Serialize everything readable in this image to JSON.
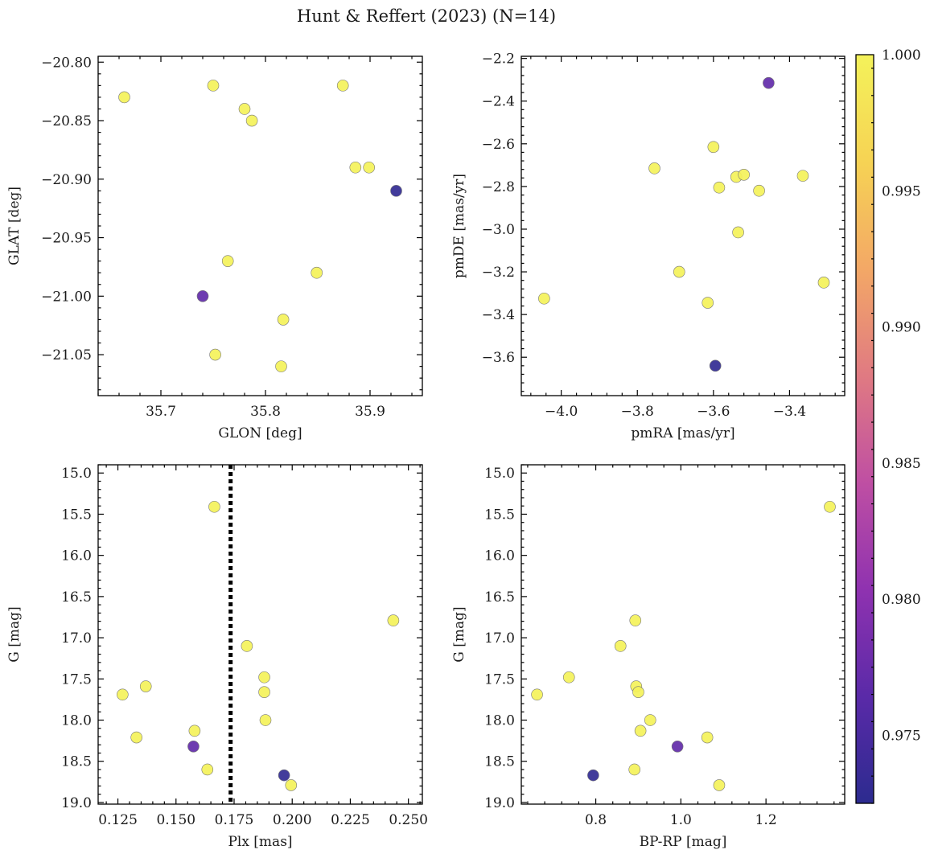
{
  "title": "Hunt & Reffert (2023) (N=14)",
  "colors": {
    "colormap": [
      "#2c2b8f",
      "#5a2aa8",
      "#8f32b0",
      "#bf4fa3",
      "#e07a82",
      "#f3a866",
      "#f6d354",
      "#f4f25a"
    ],
    "frame": "#000000",
    "marker_edge": "#777777"
  },
  "colorbar": {
    "min": 0.9725,
    "max": 1.0,
    "ticks": [
      "0.975",
      "0.980",
      "0.985",
      "0.990",
      "0.995",
      "1.000"
    ]
  },
  "chart_data": [
    {
      "id": "glon-glat",
      "type": "scatter",
      "xlabel": "GLON [deg]",
      "ylabel": "GLAT [deg]",
      "xlim": [
        35.64,
        35.95
      ],
      "ylim": [
        -21.085,
        -20.795
      ],
      "y_inverted": false,
      "xticks": [
        "35.7",
        "35.8",
        "35.9"
      ],
      "yticks": [
        "−20.80",
        "−20.85",
        "−20.90",
        "−20.95",
        "−21.00",
        "−21.05"
      ],
      "points": [
        {
          "x": 35.665,
          "y": -20.83,
          "p": 1.0
        },
        {
          "x": 35.75,
          "y": -20.82,
          "p": 1.0
        },
        {
          "x": 35.78,
          "y": -20.84,
          "p": 1.0
        },
        {
          "x": 35.787,
          "y": -20.85,
          "p": 1.0
        },
        {
          "x": 35.874,
          "y": -20.82,
          "p": 1.0
        },
        {
          "x": 35.886,
          "y": -20.89,
          "p": 1.0
        },
        {
          "x": 35.899,
          "y": -20.89,
          "p": 1.0
        },
        {
          "x": 35.925,
          "y": -20.91,
          "p": 0.973
        },
        {
          "x": 35.764,
          "y": -20.97,
          "p": 1.0
        },
        {
          "x": 35.849,
          "y": -20.98,
          "p": 1.0
        },
        {
          "x": 35.74,
          "y": -21.0,
          "p": 0.977
        },
        {
          "x": 35.817,
          "y": -21.02,
          "p": 1.0
        },
        {
          "x": 35.752,
          "y": -21.05,
          "p": 1.0
        },
        {
          "x": 35.815,
          "y": -21.06,
          "p": 1.0
        }
      ]
    },
    {
      "id": "pmra-pmde",
      "type": "scatter",
      "xlabel": "pmRA [mas/yr]",
      "ylabel": "pmDE [mas/yr]",
      "xlim": [
        -4.105,
        -3.255
      ],
      "ylim": [
        -3.78,
        -2.19
      ],
      "y_inverted": false,
      "xticks": [
        "−4.0",
        "−3.8",
        "−3.6",
        "−3.4"
      ],
      "yticks": [
        "−2.2",
        "−2.4",
        "−2.6",
        "−2.8",
        "−3.0",
        "−3.2",
        "−3.4",
        "−3.6"
      ],
      "points": [
        {
          "x": -3.455,
          "y": -2.315,
          "p": 0.977
        },
        {
          "x": -3.6,
          "y": -2.615,
          "p": 1.0
        },
        {
          "x": -3.755,
          "y": -2.715,
          "p": 1.0
        },
        {
          "x": -3.54,
          "y": -2.755,
          "p": 1.0
        },
        {
          "x": -3.52,
          "y": -2.745,
          "p": 1.0
        },
        {
          "x": -3.365,
          "y": -2.75,
          "p": 1.0
        },
        {
          "x": -3.585,
          "y": -2.805,
          "p": 1.0
        },
        {
          "x": -3.48,
          "y": -2.82,
          "p": 1.0
        },
        {
          "x": -3.535,
          "y": -3.015,
          "p": 1.0
        },
        {
          "x": -3.69,
          "y": -3.2,
          "p": 1.0
        },
        {
          "x": -3.31,
          "y": -3.25,
          "p": 1.0
        },
        {
          "x": -4.045,
          "y": -3.325,
          "p": 1.0
        },
        {
          "x": -3.615,
          "y": -3.345,
          "p": 1.0
        },
        {
          "x": -3.595,
          "y": -3.64,
          "p": 0.973
        }
      ]
    },
    {
      "id": "plx-g",
      "type": "scatter",
      "xlabel": "Plx [mas]",
      "ylabel": "G [mag]",
      "xlim": [
        0.1165,
        0.256
      ],
      "ylim": [
        14.9,
        19.02
      ],
      "y_inverted": true,
      "xticks": [
        "0.125",
        "0.150",
        "0.175",
        "0.200",
        "0.225",
        "0.250"
      ],
      "yticks": [
        "15.0",
        "15.5",
        "16.0",
        "16.5",
        "17.0",
        "17.5",
        "18.0",
        "18.5",
        "19.0"
      ],
      "vline": {
        "x": 0.1735,
        "style": "dotted"
      },
      "points": [
        {
          "x": 0.1665,
          "y": 15.41,
          "p": 1.0
        },
        {
          "x": 0.2435,
          "y": 16.79,
          "p": 1.0
        },
        {
          "x": 0.1805,
          "y": 17.1,
          "p": 1.0
        },
        {
          "x": 0.188,
          "y": 17.48,
          "p": 1.0
        },
        {
          "x": 0.137,
          "y": 17.59,
          "p": 1.0
        },
        {
          "x": 0.188,
          "y": 17.66,
          "p": 1.0
        },
        {
          "x": 0.127,
          "y": 17.69,
          "p": 1.0
        },
        {
          "x": 0.1885,
          "y": 18.0,
          "p": 1.0
        },
        {
          "x": 0.158,
          "y": 18.13,
          "p": 1.0
        },
        {
          "x": 0.133,
          "y": 18.21,
          "p": 1.0
        },
        {
          "x": 0.1575,
          "y": 18.32,
          "p": 0.977
        },
        {
          "x": 0.1635,
          "y": 18.6,
          "p": 1.0
        },
        {
          "x": 0.1965,
          "y": 18.67,
          "p": 0.973
        },
        {
          "x": 0.1995,
          "y": 18.79,
          "p": 1.0
        }
      ]
    },
    {
      "id": "bprp-g",
      "type": "scatter",
      "xlabel": "BP-RP [mag]",
      "ylabel": "G [mag]",
      "xlim": [
        0.625,
        1.385
      ],
      "ylim": [
        14.9,
        19.02
      ],
      "y_inverted": true,
      "xticks": [
        "0.8",
        "1.0",
        "1.2"
      ],
      "yticks": [
        "15.0",
        "15.5",
        "16.0",
        "16.5",
        "17.0",
        "17.5",
        "18.0",
        "18.5",
        "19.0"
      ],
      "points": [
        {
          "x": 1.35,
          "y": 15.41,
          "p": 1.0
        },
        {
          "x": 0.893,
          "y": 16.79,
          "p": 1.0
        },
        {
          "x": 0.858,
          "y": 17.1,
          "p": 1.0
        },
        {
          "x": 0.737,
          "y": 17.48,
          "p": 1.0
        },
        {
          "x": 0.895,
          "y": 17.59,
          "p": 1.0
        },
        {
          "x": 0.9,
          "y": 17.66,
          "p": 1.0
        },
        {
          "x": 0.662,
          "y": 17.69,
          "p": 1.0
        },
        {
          "x": 0.928,
          "y": 18.0,
          "p": 1.0
        },
        {
          "x": 0.905,
          "y": 18.13,
          "p": 1.0
        },
        {
          "x": 1.062,
          "y": 18.21,
          "p": 1.0
        },
        {
          "x": 0.992,
          "y": 18.32,
          "p": 0.977
        },
        {
          "x": 0.891,
          "y": 18.6,
          "p": 1.0
        },
        {
          "x": 0.794,
          "y": 18.67,
          "p": 0.973
        },
        {
          "x": 1.09,
          "y": 18.79,
          "p": 1.0
        }
      ]
    }
  ]
}
